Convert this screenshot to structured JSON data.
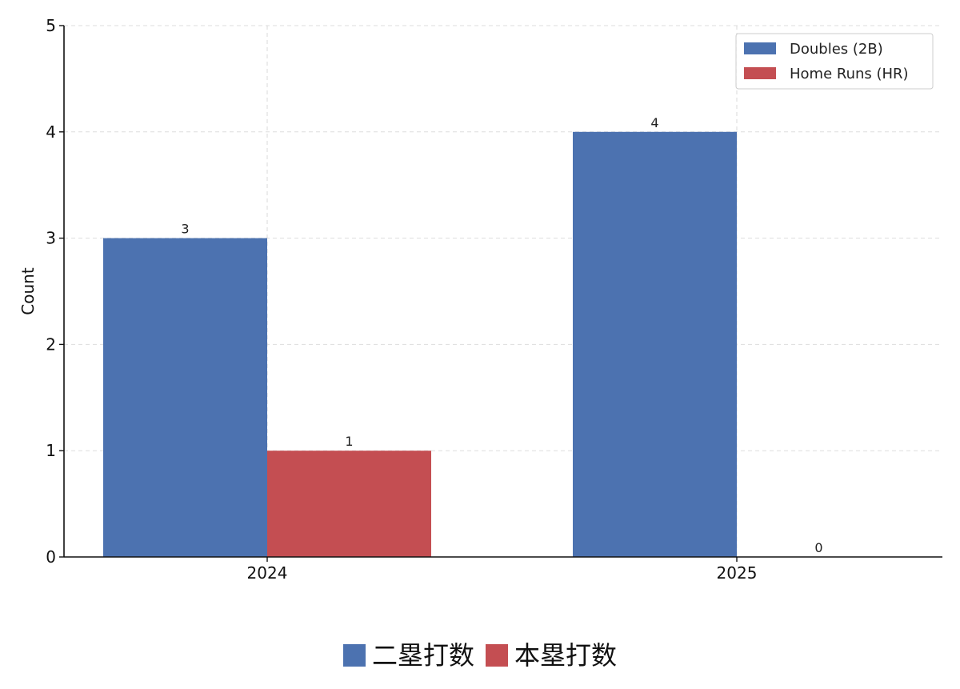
{
  "chart_data": {
    "type": "bar",
    "categories": [
      "2024",
      "2025"
    ],
    "series": [
      {
        "name": "Doubles (2B)",
        "values": [
          3,
          4
        ],
        "color": "#4c72b0"
      },
      {
        "name": "Home Runs (HR)",
        "values": [
          1,
          0
        ],
        "color": "#c44e52"
      }
    ],
    "title": "",
    "xlabel": "",
    "ylabel": "Count",
    "ylim": [
      0,
      5
    ],
    "yticks": [
      0,
      1,
      2,
      3,
      4,
      5
    ],
    "grid": true,
    "legend_position": "top-right"
  },
  "bottom_legend": {
    "items": [
      {
        "label": "二塁打数",
        "color": "#4c72b0"
      },
      {
        "label": "本塁打数",
        "color": "#c44e52"
      }
    ]
  }
}
